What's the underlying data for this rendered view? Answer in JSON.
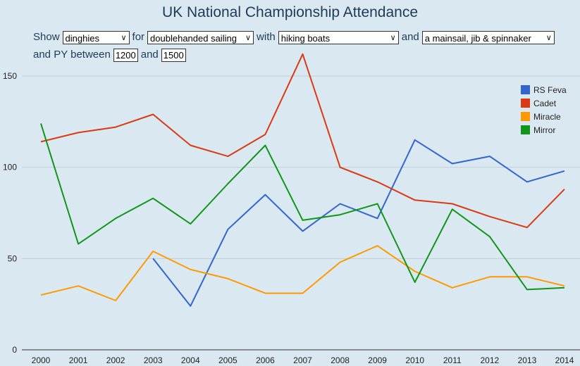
{
  "title": "UK National Championship Attendance",
  "filters": {
    "show_label": "Show",
    "type_value": "dinghies",
    "for_label": "for",
    "discipline_value": "doublehanded sailing",
    "with_label": "with",
    "boats_value": "hiking boats",
    "and_label": "and",
    "sails_value": "a mainsail, jib & spinnaker",
    "py_label": "and PY between",
    "py_min": "1200",
    "py_and_label": "and",
    "py_max": "1500"
  },
  "chart_data": {
    "type": "line",
    "title": "UK National Championship Attendance",
    "xlabel": "",
    "ylabel": "",
    "x": [
      "2000",
      "2001",
      "2002",
      "2003",
      "2004",
      "2005",
      "2006",
      "2007",
      "2008",
      "2009",
      "2010",
      "2011",
      "2012",
      "2013",
      "2014"
    ],
    "ylim": [
      0,
      170
    ],
    "yticks": [
      0,
      50,
      100,
      150
    ],
    "grid": true,
    "legend_position": "top-right",
    "series": [
      {
        "name": "RS Feva",
        "color": "#3366cc",
        "values": [
          null,
          null,
          null,
          50,
          24,
          66,
          85,
          65,
          80,
          72,
          115,
          102,
          106,
          92,
          98
        ]
      },
      {
        "name": "Cadet",
        "color": "#dc3912",
        "values": [
          114,
          119,
          122,
          129,
          112,
          106,
          118,
          162,
          100,
          92,
          82,
          80,
          73,
          67,
          88
        ]
      },
      {
        "name": "Miracle",
        "color": "#ff9900",
        "values": [
          30,
          35,
          27,
          54,
          44,
          39,
          31,
          31,
          48,
          57,
          43,
          34,
          40,
          40,
          35
        ]
      },
      {
        "name": "Mirror",
        "color": "#109618",
        "values": [
          124,
          58,
          72,
          83,
          69,
          91,
          112,
          71,
          74,
          80,
          37,
          77,
          62,
          33,
          34
        ]
      }
    ]
  }
}
